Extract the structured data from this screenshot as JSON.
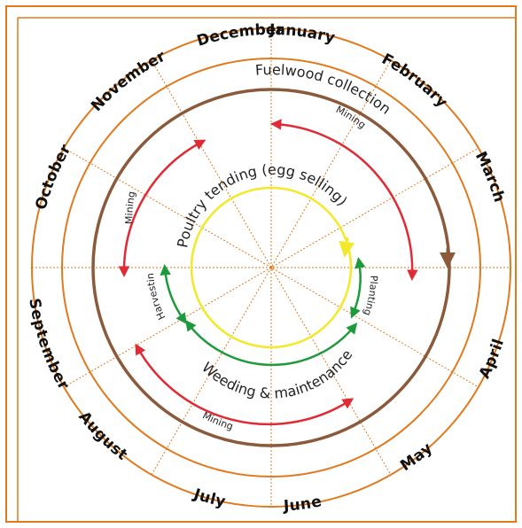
{
  "months": [
    "January",
    "February",
    "March",
    "April",
    "May",
    "June",
    "July",
    "August",
    "September",
    "October",
    "November",
    "December"
  ],
  "activities": {
    "fuelwood": "Fuelwood collection",
    "poultry": "Poultry tending (egg selling)",
    "weeding": "Weeding & maintenance",
    "mining": "Mining",
    "planting": "Planting",
    "harvesting": "Harvesting"
  },
  "colors": {
    "frame": "#e07a1f",
    "fuelwood": "#8a5a3b",
    "mining": "#e02a35",
    "weeding": "#1e9a3c",
    "poultry": "#f3e82a",
    "divider": "#e07a1f"
  }
}
